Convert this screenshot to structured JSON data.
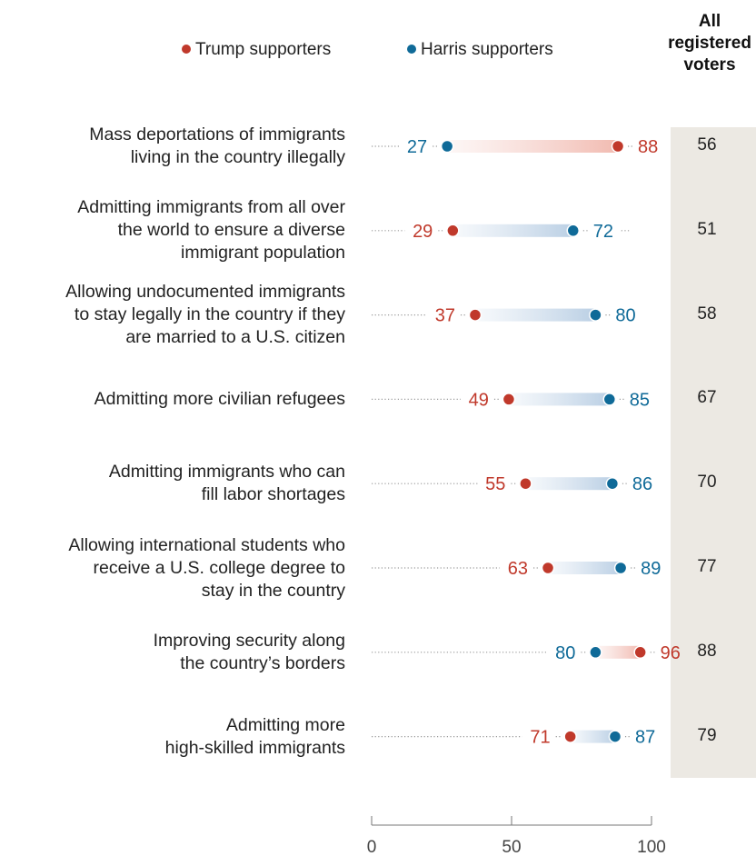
{
  "chart_data": {
    "type": "dot",
    "series": [
      {
        "name": "Trump supporters",
        "key": "trump",
        "color": "#c0392b"
      },
      {
        "name": "Harris supporters",
        "key": "harris",
        "color": "#0f6a98"
      }
    ],
    "extra_column": {
      "header": "All\nregistered\nvoters"
    },
    "rows": [
      {
        "label": "Mass deportations of immigrants\nliving in the country illegally",
        "trump": 88,
        "harris": 27,
        "all": 56
      },
      {
        "label": "Admitting immigrants from all over\nthe world to ensure a diverse\nimmigrant population",
        "trump": 29,
        "harris": 72,
        "all": 51
      },
      {
        "label": "Allowing undocumented immigrants\nto stay legally in the country if they\nare married to a U.S. citizen",
        "trump": 37,
        "harris": 80,
        "all": 58
      },
      {
        "label": "Admitting more civilian refugees",
        "trump": 49,
        "harris": 85,
        "all": 67
      },
      {
        "label": "Admitting immigrants who can\nfill labor shortages",
        "trump": 55,
        "harris": 86,
        "all": 70
      },
      {
        "label": "Allowing international students who\nreceive a U.S. college degree to\nstay in the country",
        "trump": 63,
        "harris": 89,
        "all": 77
      },
      {
        "label": "Improving security along\nthe country’s borders",
        "trump": 96,
        "harris": 80,
        "all": 88
      },
      {
        "label": "Admitting more\nhigh-skilled immigrants",
        "trump": 71,
        "harris": 87,
        "all": 79
      }
    ],
    "xlim": [
      0,
      100
    ],
    "x_ticks": [
      0,
      50,
      100
    ]
  }
}
